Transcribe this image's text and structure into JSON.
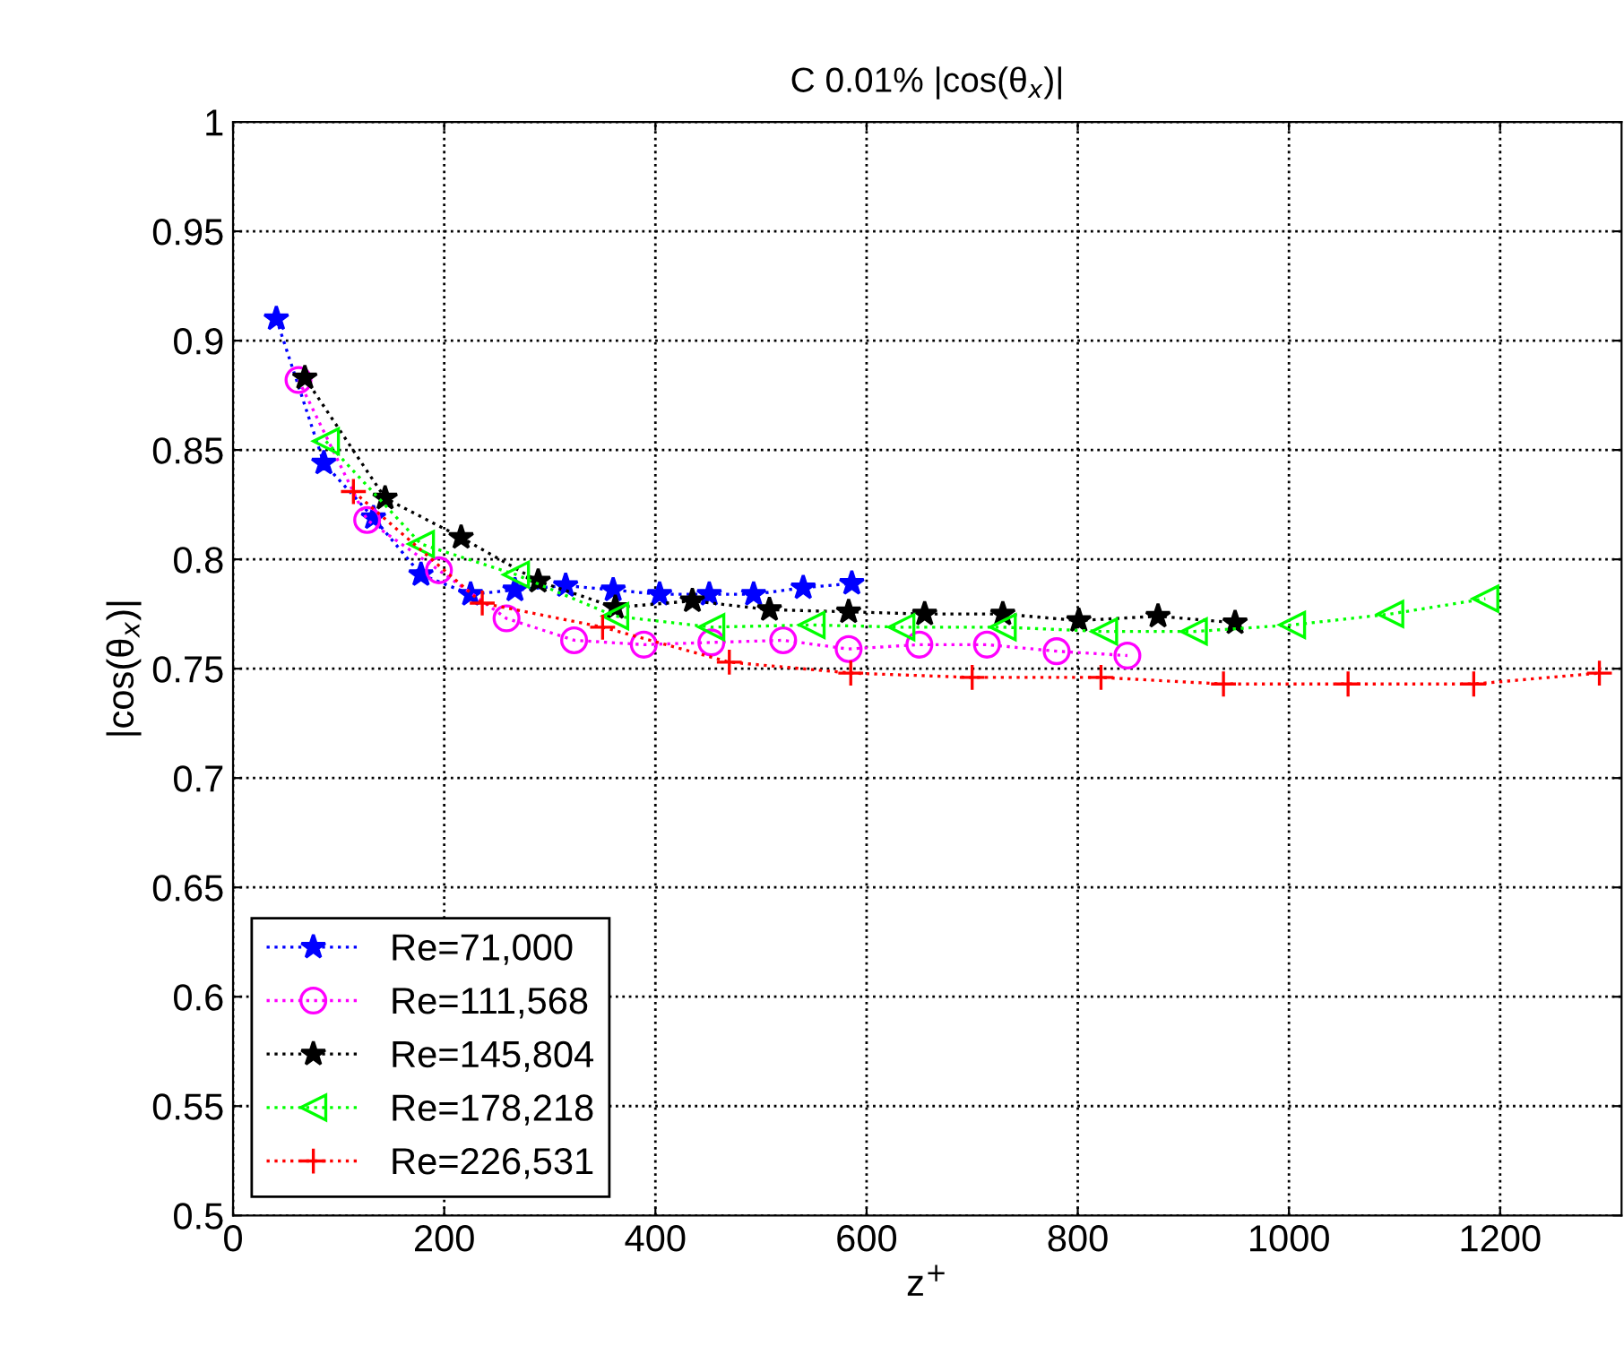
{
  "chart_data": {
    "type": "line",
    "title": "C 0.01% |cos(θ$_{x}$)|",
    "xlabel": "z$^{+}$",
    "ylabel": "|cos(θ$_{x}$)|",
    "xlim": [
      0,
      1315
    ],
    "xticks": [
      0,
      200,
      400,
      600,
      800,
      1000,
      1200
    ],
    "ylim": [
      0.5,
      1
    ],
    "yticks": [
      0.5,
      0.55,
      0.6,
      0.65,
      0.7,
      0.75,
      0.8,
      0.85,
      0.9,
      0.95,
      1
    ],
    "grid": true,
    "legend": "bottom left",
    "line_style": "dotted",
    "series": [
      {
        "name": "Re=71,000",
        "color": "#0000ff",
        "marker": "star",
        "x": [
          41,
          86,
          133,
          178,
          225,
          267,
          315,
          360,
          404,
          451,
          493,
          540,
          586
        ],
        "values": [
          0.91,
          0.844,
          0.819,
          0.793,
          0.784,
          0.786,
          0.788,
          0.786,
          0.784,
          0.784,
          0.784,
          0.787,
          0.789
        ]
      },
      {
        "name": "Re=111,568",
        "color": "#ff00ff",
        "marker": "circle",
        "x": [
          62,
          127,
          195,
          259,
          323,
          389,
          453,
          521,
          583,
          650,
          714,
          780,
          847
        ],
        "values": [
          0.882,
          0.818,
          0.795,
          0.773,
          0.763,
          0.761,
          0.762,
          0.763,
          0.759,
          0.761,
          0.761,
          0.758,
          0.756
        ]
      },
      {
        "name": "Re=145,804",
        "color": "#000000",
        "marker": "star",
        "x": [
          68,
          144,
          216,
          289,
          362,
          435,
          508,
          583,
          655,
          729,
          801,
          876,
          949
        ],
        "values": [
          0.883,
          0.828,
          0.81,
          0.79,
          0.778,
          0.781,
          0.777,
          0.776,
          0.775,
          0.775,
          0.772,
          0.774,
          0.771
        ]
      },
      {
        "name": "Re=178,218",
        "color": "#00ff00",
        "marker": "triangle",
        "x": [
          88,
          178,
          268,
          362,
          453,
          548,
          633,
          729,
          825,
          910,
          1003,
          1096,
          1186
        ],
        "values": [
          0.854,
          0.807,
          0.793,
          0.774,
          0.769,
          0.77,
          0.769,
          0.769,
          0.767,
          0.767,
          0.77,
          0.775,
          0.782
        ]
      },
      {
        "name": "Re=226,531",
        "color": "#ff0000",
        "marker": "cross",
        "x": [
          114,
          236,
          350,
          470,
          585,
          700,
          822,
          938,
          1056,
          1175,
          1294
        ],
        "values": [
          0.831,
          0.78,
          0.769,
          0.753,
          0.748,
          0.746,
          0.746,
          0.743,
          0.743,
          0.743,
          0.748
        ]
      }
    ]
  }
}
